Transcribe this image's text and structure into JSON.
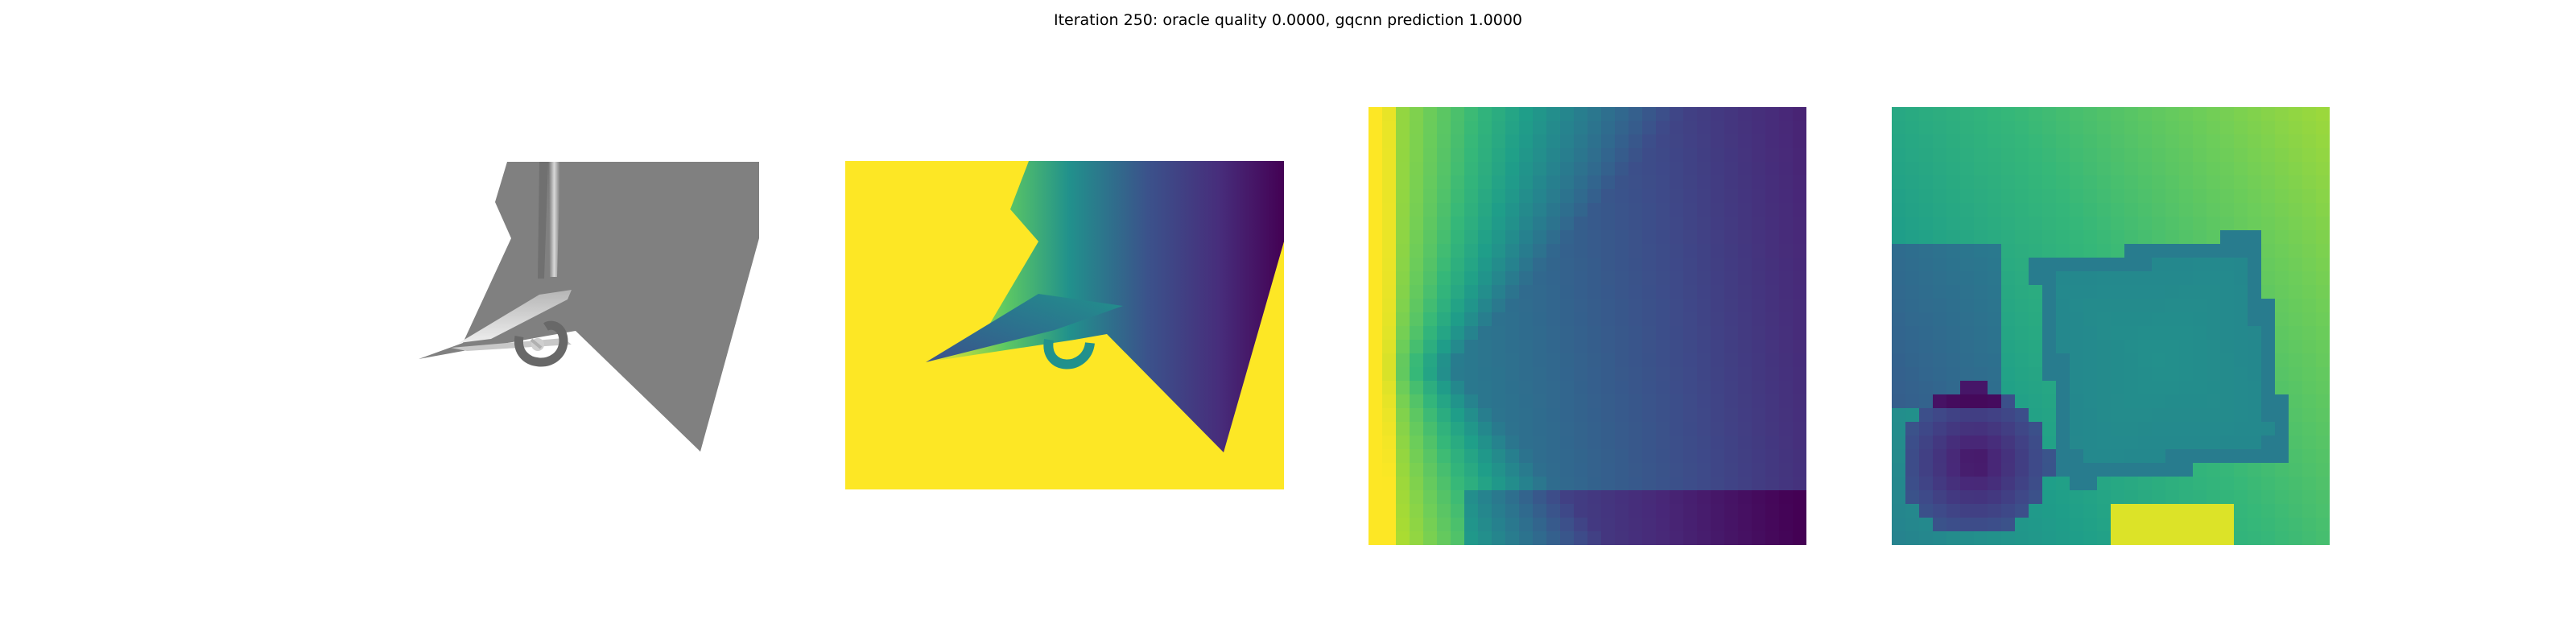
{
  "figure": {
    "title": "Iteration 250: oracle quality 0.0000, gqcnn prediction 1.0000"
  },
  "colors": {
    "background": "#ffffff",
    "render_gray": "#808080",
    "viridis_yellow": "#fde725",
    "viridis_green": "#35b779",
    "viridis_teal": "#21918c",
    "viridis_blue": "#31688e",
    "viridis_indigo": "#443983",
    "viridis_purple": "#440154"
  },
  "panels": [
    {
      "name": "rendered-grasp-view",
      "kind": "grayscale-render"
    },
    {
      "name": "depth-image-view",
      "kind": "viridis-depth"
    },
    {
      "name": "depth-crop-view-a",
      "kind": "viridis-pixel-grid"
    },
    {
      "name": "depth-crop-view-b",
      "kind": "viridis-pixel-grid"
    }
  ]
}
